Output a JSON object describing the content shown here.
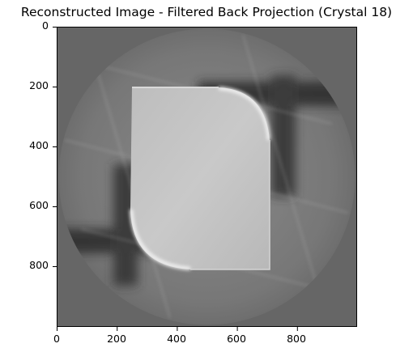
{
  "chart_data": {
    "type": "heatmap",
    "title": "Reconstructed Image - Filtered Back Projection (Crystal 18)",
    "xlabel": "",
    "ylabel": "",
    "xlim": [
      0,
      1000
    ],
    "ylim": [
      1000,
      0
    ],
    "x_ticks": [
      0,
      200,
      400,
      600,
      800
    ],
    "y_ticks": [
      0,
      200,
      400,
      600,
      800
    ],
    "colormap": "gray",
    "grid": false
  },
  "colors": {
    "background": "#666666",
    "object": "#c8c8c8",
    "bright_edge": "#f5f5f5",
    "dark_streak": "#222222"
  }
}
